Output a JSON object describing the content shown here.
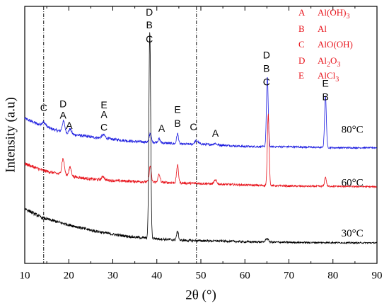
{
  "chart_data": {
    "type": "line",
    "xlabel": "2θ (°)",
    "ylabel": "Intensity (a.u)",
    "xlim": [
      10,
      90
    ],
    "xticks": [
      10,
      20,
      30,
      40,
      50,
      60,
      70,
      80,
      90
    ],
    "ylim": [
      0,
      100
    ],
    "grid": false,
    "reference_lines_x": [
      14.3,
      49.0
    ],
    "series": [
      {
        "name": "80°C",
        "color": "#1f1fe0",
        "baseline": [
          [
            10,
            56.4
          ],
          [
            14,
            53.4
          ],
          [
            20,
            50.4
          ],
          [
            25,
            49.2
          ],
          [
            30,
            48.3
          ],
          [
            35,
            47.4
          ],
          [
            40,
            47.1
          ],
          [
            45,
            46.4
          ],
          [
            50,
            46.4
          ],
          [
            55,
            46.0
          ],
          [
            60,
            45.5
          ],
          [
            65,
            45.4
          ],
          [
            70,
            45.4
          ],
          [
            75,
            45.2
          ],
          [
            80,
            45.0
          ],
          [
            85,
            45.0
          ],
          [
            90,
            45.0
          ]
        ],
        "peaks": [
          [
            14.3,
            1.6,
            0.5
          ],
          [
            18.8,
            4.3,
            0.3
          ],
          [
            20.3,
            1.9,
            0.3
          ],
          [
            27.9,
            1.3,
            0.4
          ],
          [
            38.5,
            3.5,
            0.22
          ],
          [
            40.5,
            1.4,
            0.25
          ],
          [
            44.7,
            4.0,
            0.22
          ],
          [
            49.0,
            1.3,
            0.4
          ],
          [
            53.2,
            0.6,
            0.3
          ],
          [
            65.1,
            27.0,
            0.2
          ],
          [
            78.3,
            20.0,
            0.2
          ]
        ]
      },
      {
        "name": "60°C",
        "color": "#e8141c",
        "baseline": [
          [
            10,
            38.8
          ],
          [
            14,
            36.2
          ],
          [
            20,
            34.0
          ],
          [
            25,
            32.8
          ],
          [
            30,
            32.2
          ],
          [
            35,
            31.9
          ],
          [
            40,
            31.6
          ],
          [
            45,
            31.3
          ],
          [
            50,
            31.1
          ],
          [
            55,
            30.8
          ],
          [
            60,
            30.5
          ],
          [
            65,
            30.3
          ],
          [
            70,
            30.1
          ],
          [
            75,
            30.0
          ],
          [
            80,
            30.0
          ],
          [
            85,
            29.9
          ],
          [
            90,
            29.8
          ]
        ],
        "peaks": [
          [
            18.7,
            6.2,
            0.3
          ],
          [
            20.3,
            3.4,
            0.3
          ],
          [
            27.8,
            1.4,
            0.3
          ],
          [
            38.5,
            6.2,
            0.22
          ],
          [
            40.5,
            2.9,
            0.25
          ],
          [
            44.7,
            6.9,
            0.22
          ],
          [
            53.3,
            1.4,
            0.3
          ],
          [
            65.3,
            27.7,
            0.2
          ],
          [
            78.3,
            3.6,
            0.2
          ]
        ]
      },
      {
        "name": "30°C",
        "color": "#000000",
        "baseline": [
          [
            10,
            21.3
          ],
          [
            14,
            17.7
          ],
          [
            20,
            15.0
          ],
          [
            25,
            12.9
          ],
          [
            30,
            11.3
          ],
          [
            35,
            10.2
          ],
          [
            40,
            9.6
          ],
          [
            45,
            9.0
          ],
          [
            50,
            8.8
          ],
          [
            55,
            8.7
          ],
          [
            60,
            8.4
          ],
          [
            65,
            8.3
          ],
          [
            70,
            8.2
          ],
          [
            75,
            8.1
          ],
          [
            80,
            8.1
          ],
          [
            85,
            8.0
          ],
          [
            90,
            8.0
          ]
        ],
        "peaks": [
          [
            38.4,
            80.5,
            0.2
          ],
          [
            44.7,
            3.4,
            0.22
          ],
          [
            65.0,
            1.4,
            0.3
          ]
        ]
      }
    ],
    "curve_labels": [
      {
        "text": "80°C",
        "x": 84.4,
        "y": 51.8
      },
      {
        "text": "60°C",
        "x": 84.4,
        "y": 31.1
      },
      {
        "text": "30°C",
        "x": 84.4,
        "y": 11.4
      }
    ],
    "peak_labels": [
      {
        "text": "C",
        "x": 14.3,
        "y": 60.2
      },
      {
        "text": "D",
        "x": 18.7,
        "y": 61.8
      },
      {
        "text": "A",
        "x": 18.7,
        "y": 57.3
      },
      {
        "text": "A",
        "x": 20.1,
        "y": 53.4
      },
      {
        "text": "E",
        "x": 28.0,
        "y": 61.4
      },
      {
        "text": "A",
        "x": 28.0,
        "y": 57.7
      },
      {
        "text": "C",
        "x": 28.0,
        "y": 52.7
      },
      {
        "text": "D",
        "x": 38.3,
        "y": 97.5
      },
      {
        "text": "B",
        "x": 38.3,
        "y": 92.5
      },
      {
        "text": "C",
        "x": 38.3,
        "y": 87.0
      },
      {
        "text": "A",
        "x": 41.1,
        "y": 52.2
      },
      {
        "text": "E",
        "x": 44.7,
        "y": 59.6
      },
      {
        "text": "B",
        "x": 44.7,
        "y": 54.2
      },
      {
        "text": "C",
        "x": 48.3,
        "y": 52.8
      },
      {
        "text": "A",
        "x": 53.3,
        "y": 50.3
      },
      {
        "text": "D",
        "x": 64.9,
        "y": 80.8
      },
      {
        "text": "B",
        "x": 64.9,
        "y": 75.6
      },
      {
        "text": "C",
        "x": 64.9,
        "y": 70.3
      },
      {
        "text": "E",
        "x": 78.3,
        "y": 69.7
      },
      {
        "text": "B",
        "x": 78.3,
        "y": 64.5
      }
    ],
    "legend": {
      "placement": "top-right",
      "entries": [
        {
          "letter": "A",
          "text": "Al(OH)",
          "sub": "3",
          "tail": ""
        },
        {
          "letter": "B",
          "text": "Al",
          "sub": "",
          "tail": ""
        },
        {
          "letter": "C",
          "text": "AlO(OH)",
          "sub": "",
          "tail": ""
        },
        {
          "letter": "D",
          "text": "Al",
          "sub": "2",
          "tail": "O",
          "sub2": "3"
        },
        {
          "letter": "E",
          "text": "AlCl",
          "sub": "3",
          "tail": ""
        }
      ]
    }
  }
}
